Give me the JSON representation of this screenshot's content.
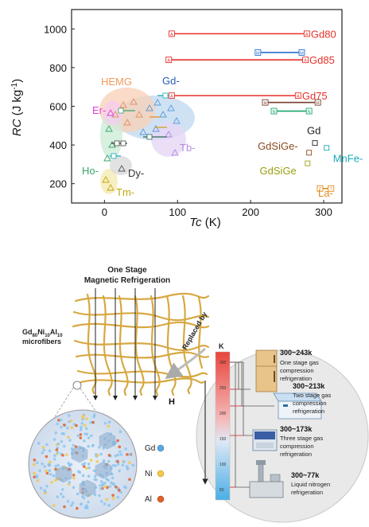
{
  "chart_data": {
    "type": "scatter",
    "xlabel": "Tc (K)",
    "ylabel": "RC (J kg-1)",
    "xlim": [
      -45,
      325
    ],
    "ylim": [
      100,
      1100
    ],
    "x_ticks": [
      "0",
      "100",
      "200",
      "300"
    ],
    "y_ticks": [
      "200",
      "400",
      "600",
      "800",
      "1000"
    ],
    "grid": false,
    "ranges": [
      {
        "name": "Gd80",
        "marker": "A",
        "x": [
          92,
          277
        ],
        "y": 975,
        "color": "#e8312b"
      },
      {
        "name": "Gd85",
        "marker": "A",
        "x": [
          88,
          275
        ],
        "y": 840,
        "color": "#e8312b"
      },
      {
        "name": "",
        "marker": "M",
        "x": [
          210,
          270
        ],
        "y": 878,
        "color": "#2a6fd1"
      },
      {
        "name": "Gd75",
        "marker": "A",
        "x": [
          92,
          265
        ],
        "y": 655,
        "color": "#e8312b"
      },
      {
        "name": "",
        "marker": "H",
        "x": [
          220,
          292
        ],
        "y": 620,
        "color": "#7a3e2e"
      },
      {
        "name": "",
        "marker": "N",
        "x": [
          232,
          280
        ],
        "y": 575,
        "color": "#1aa56b"
      },
      {
        "name": "",
        "marker": "T",
        "x": [
          295,
          310
        ],
        "y": 175,
        "color": "#e38b1a"
      }
    ],
    "points": [
      {
        "name": "Gd",
        "x": 288,
        "y": 410,
        "color": "#222222"
      },
      {
        "name": "MnFe-",
        "x": 304,
        "y": 385,
        "color": "#18a9b8"
      },
      {
        "name": "GdSiGe-",
        "x": 280,
        "y": 360,
        "color": "#8a4b1e"
      },
      {
        "name": "GdSiGe",
        "x": 278,
        "y": 305,
        "color": "#9aa010"
      }
    ],
    "regions": [
      {
        "name": "HEMG",
        "color": "#f19a5a"
      },
      {
        "name": "Gd-",
        "color": "#5b9bd5"
      },
      {
        "name": "Er-",
        "color": "#e53ed8"
      },
      {
        "name": "Tb-",
        "color": "#b48be0"
      },
      {
        "name": "Ho-",
        "color": "#3aa56a"
      },
      {
        "name": "Dy-",
        "color": "#333333"
      },
      {
        "name": "Tm-",
        "color": "#c4a60a"
      },
      {
        "name": "La-",
        "color": "#e38b1a"
      }
    ]
  },
  "diagram": {
    "title_line1": "One Stage",
    "title_line2": "Magnetic Refrigeration",
    "fiber_label_line1": "Gd60Ni10Al10",
    "fiber_label_line2": "microfibers",
    "field_label": "H",
    "replaced_by": "Replaced by",
    "scale_unit": "K",
    "scale_ticks": [
      "300",
      "250",
      "200",
      "150",
      "100",
      "50"
    ],
    "legend": [
      {
        "name": "Gd",
        "color": "#5aa8e0"
      },
      {
        "name": "Ni",
        "color": "#f2c84b"
      },
      {
        "name": "Al",
        "color": "#e0602a"
      }
    ],
    "stages": [
      {
        "range": "300~243k",
        "line1": "One stage gas",
        "line2": "compression",
        "line3": "refrigeration"
      },
      {
        "range": "300~213k",
        "line1": "Two stage gas",
        "line2": "compression",
        "line3": "refrigeration"
      },
      {
        "range": "300~173k",
        "line1": "Three stage gas",
        "line2": "compression",
        "line3": "refrigeration"
      },
      {
        "range": "300~77k",
        "line1": "Liquid nitrogen",
        "line2": "refrigeration",
        "line3": ""
      }
    ]
  }
}
